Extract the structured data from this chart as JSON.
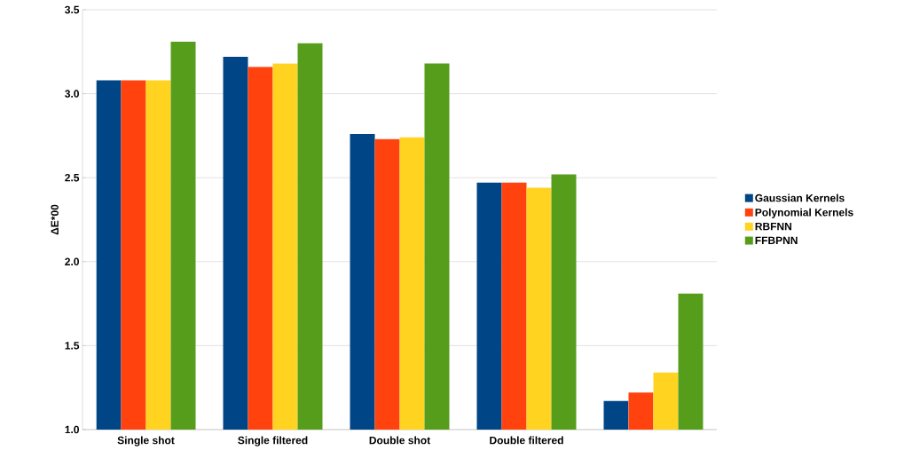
{
  "chart_data": {
    "type": "bar",
    "ylabel": "ΔE*00",
    "categories": [
      "Single shot",
      "Single filtered",
      "Double shot",
      "Double filtered",
      null
    ],
    "series": [
      {
        "name": "Gaussian Kernels",
        "color": "#004586",
        "values": [
          3.08,
          3.22,
          2.76,
          2.47,
          1.17
        ]
      },
      {
        "name": "Polynomial Kernels",
        "color": "#ff420e",
        "values": [
          3.08,
          3.16,
          2.73,
          2.47,
          1.22
        ]
      },
      {
        "name": "RBFNN",
        "color": "#ffd320",
        "values": [
          3.08,
          3.18,
          2.74,
          2.44,
          1.34
        ]
      },
      {
        "name": "FFBPNN",
        "color": "#579d1c",
        "values": [
          3.31,
          3.3,
          3.18,
          2.52,
          1.81
        ]
      }
    ],
    "ylim": [
      1.0,
      3.5
    ],
    "yticks": [
      {
        "value": 1.0,
        "label": "1.0"
      },
      {
        "value": 1.5,
        "label": "1.5"
      },
      {
        "value": 2.0,
        "label": "2.0"
      },
      {
        "value": 2.5,
        "label": "2.5"
      },
      {
        "value": 3.0,
        "label": "3.0"
      },
      {
        "value": 3.5,
        "label": "3.5"
      }
    ],
    "grid": "y",
    "legend": "right"
  }
}
